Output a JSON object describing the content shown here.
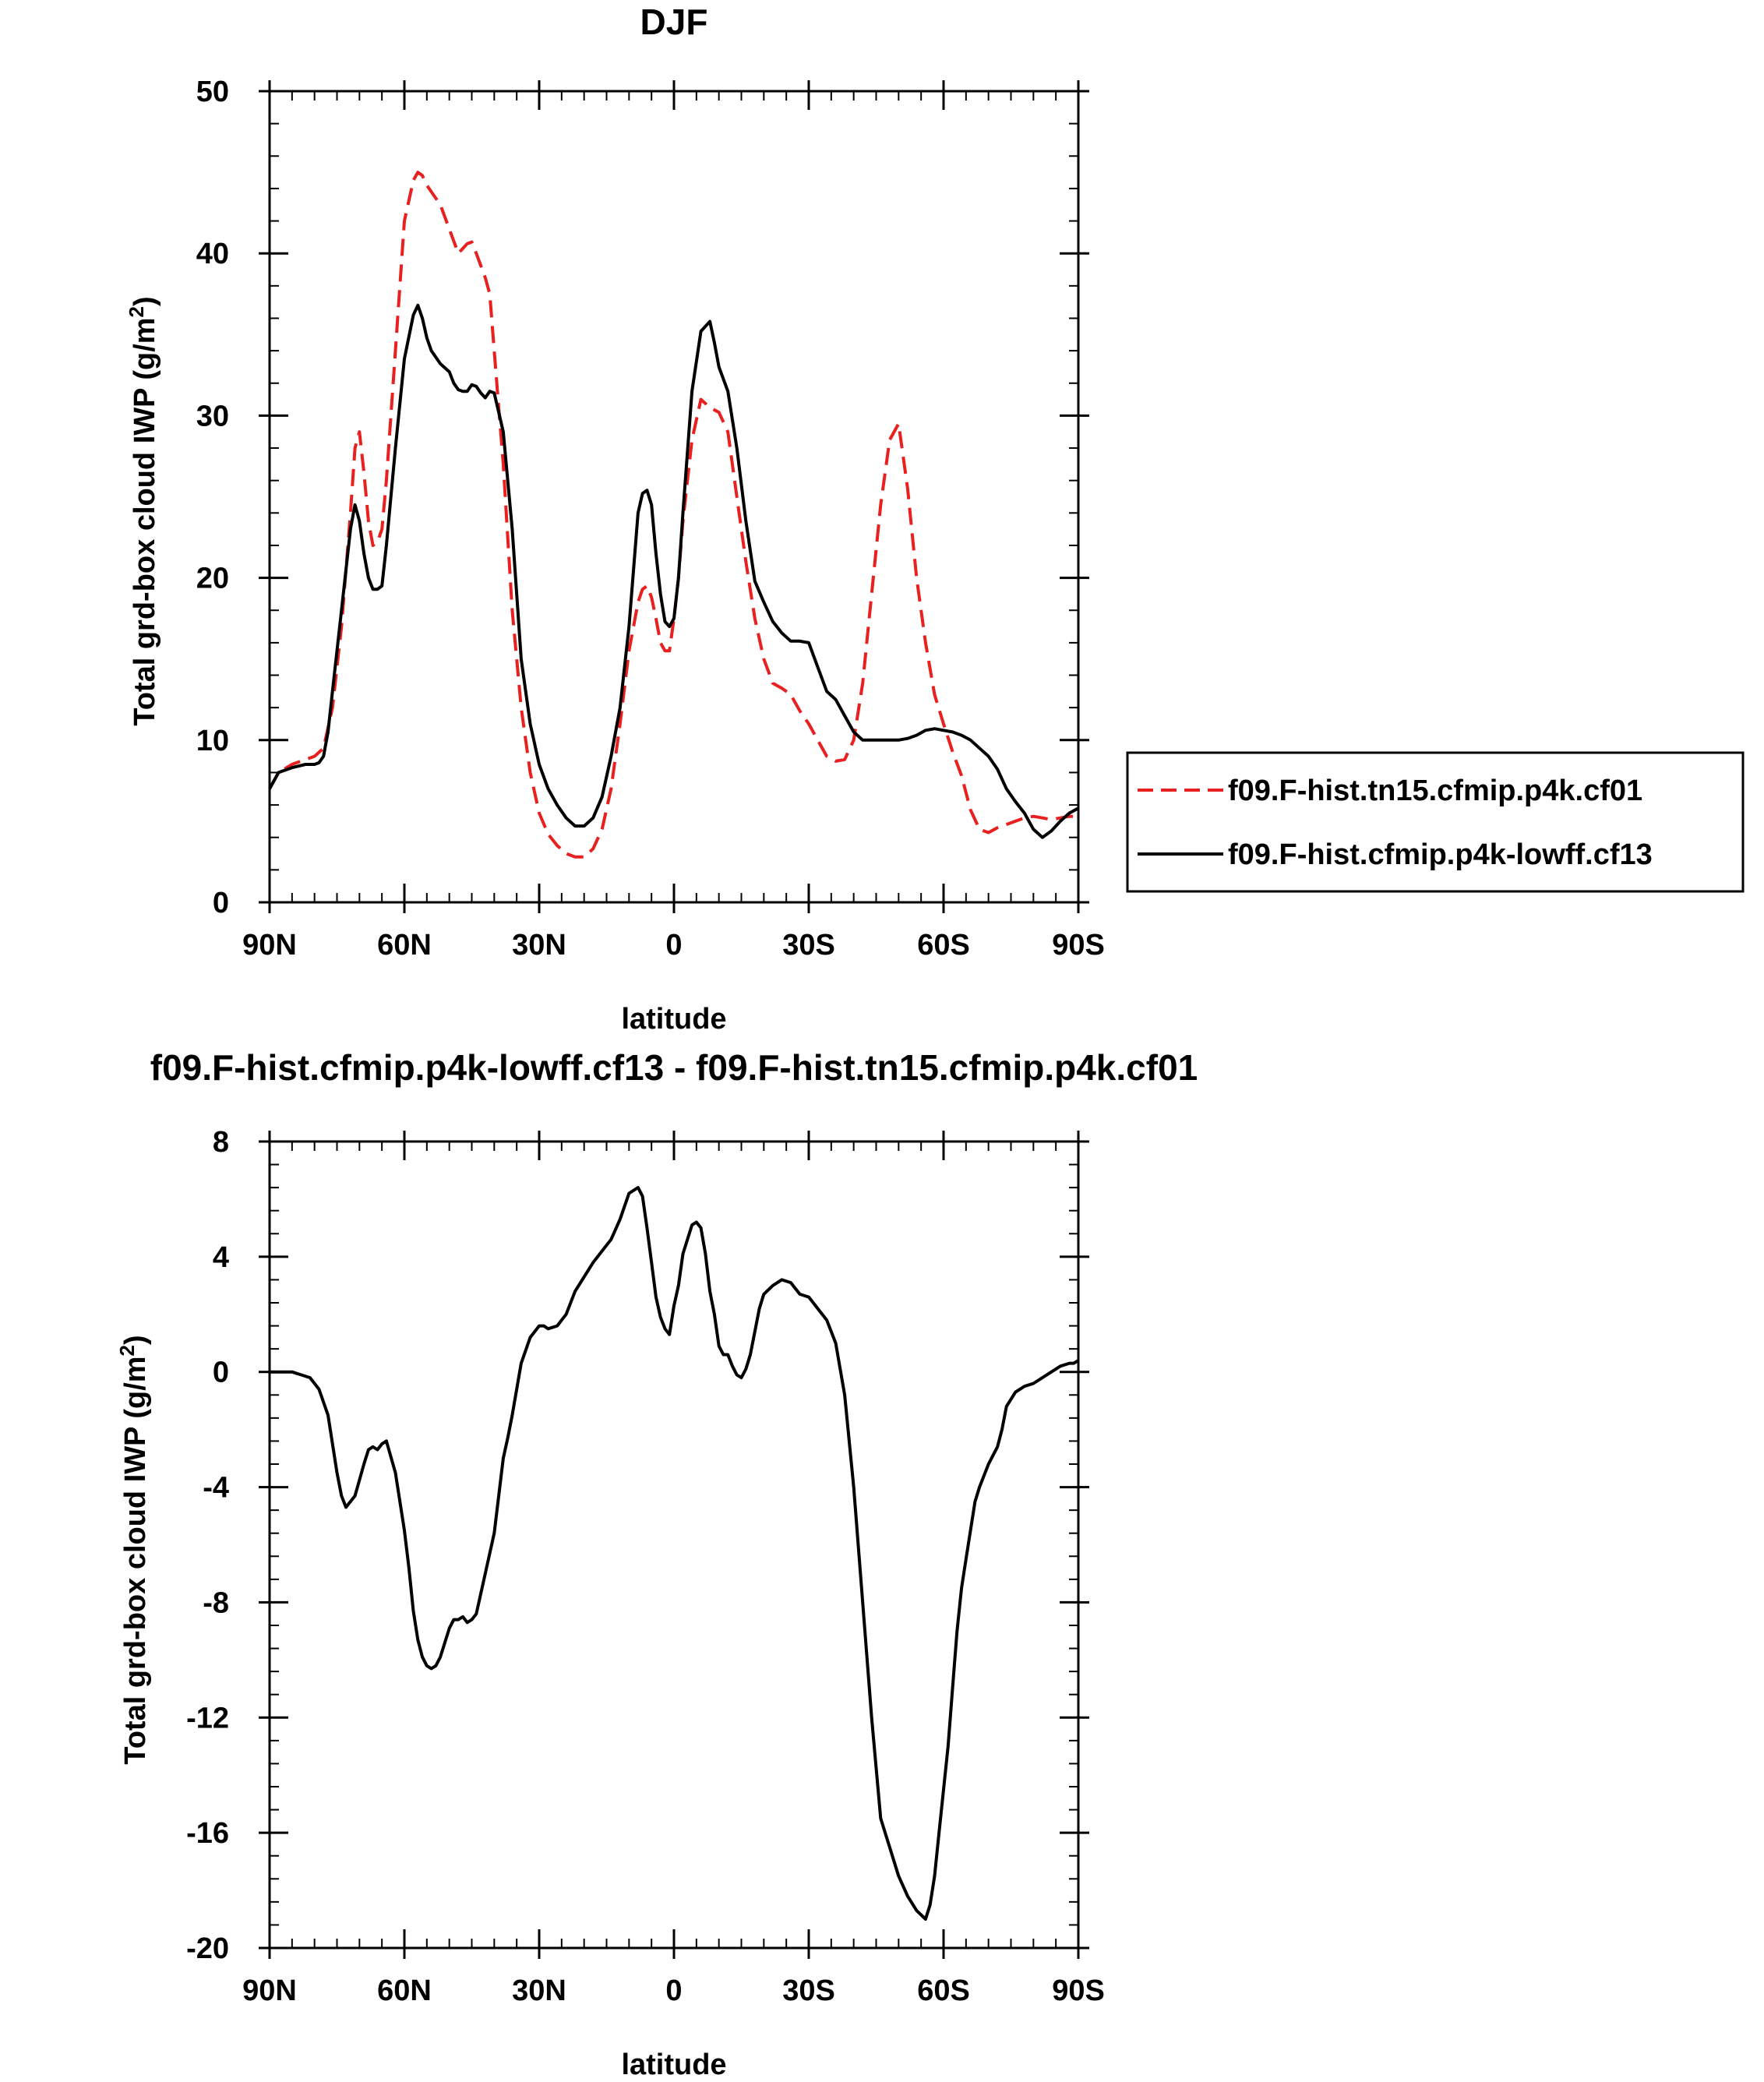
{
  "chart_data": [
    {
      "type": "line",
      "title": "DJF",
      "xlabel": "latitude",
      "ylabel": "Total grd-box cloud IWP (g/m²)",
      "ylabel_base": "Total grd-box cloud IWP (g/m",
      "ylabel_sup": "2",
      "ylabel_close": ")",
      "xlim": [
        90,
        -90
      ],
      "ylim": [
        0,
        50
      ],
      "xticks": [
        90,
        60,
        30,
        0,
        -30,
        -60,
        -90
      ],
      "xtick_labels": [
        "90N",
        "60N",
        "30N",
        "0",
        "30S",
        "60S",
        "90S"
      ],
      "yticks": [
        0,
        10,
        20,
        30,
        40,
        50
      ],
      "ytick_labels": [
        "0",
        "10",
        "20",
        "30",
        "40",
        "50"
      ],
      "legend_placement": "outside right",
      "series": [
        {
          "name": "f09.F-hist.tn15.cfmip.p4k.cf01",
          "color": "#e8201f",
          "dash": "dashed",
          "x": [
            90,
            88,
            85,
            82,
            80,
            78,
            76,
            74,
            72,
            71,
            70,
            69,
            68,
            67,
            66,
            65,
            64,
            62,
            60,
            58,
            57,
            56,
            55,
            54,
            52,
            50,
            48,
            46,
            45,
            44,
            42,
            41,
            40,
            38,
            36,
            34,
            32,
            30,
            28,
            26,
            24,
            22,
            20,
            18,
            16,
            14,
            12,
            10,
            8,
            7,
            6,
            5,
            4,
            3,
            2,
            1,
            0,
            -1,
            -2,
            -4,
            -6,
            -8,
            -10,
            -12,
            -14,
            -16,
            -18,
            -20,
            -22,
            -24,
            -26,
            -28,
            -30,
            -32,
            -34,
            -36,
            -38,
            -40,
            -42,
            -44,
            -46,
            -48,
            -50,
            -52,
            -54,
            -56,
            -58,
            -60,
            -62,
            -64,
            -66,
            -68,
            -70,
            -72,
            -74,
            -76,
            -78,
            -80,
            -82,
            -84,
            -86,
            -88,
            -90
          ],
          "y": [
            7.0,
            8.0,
            8.5,
            8.8,
            9.0,
            9.5,
            12.0,
            17.0,
            24.0,
            28.0,
            29.0,
            26.5,
            23.5,
            22.0,
            22.2,
            23.0,
            26.0,
            34.0,
            42.0,
            44.5,
            45.0,
            44.8,
            44.2,
            43.8,
            43.0,
            41.5,
            40.0,
            40.6,
            40.7,
            40.0,
            38.5,
            37.5,
            34.0,
            27.0,
            18.0,
            12.0,
            8.0,
            5.5,
            4.2,
            3.5,
            3.0,
            2.8,
            2.8,
            3.3,
            4.5,
            7.0,
            11.0,
            15.5,
            18.5,
            19.3,
            19.5,
            18.8,
            17.5,
            16.0,
            15.5,
            15.5,
            17.5,
            20.0,
            23.5,
            28.5,
            31.0,
            30.5,
            30.2,
            29.0,
            25.0,
            21.0,
            17.5,
            15.0,
            13.5,
            13.2,
            12.8,
            11.8,
            11.0,
            10.0,
            9.0,
            8.7,
            8.8,
            10.0,
            13.5,
            19.0,
            24.5,
            28.5,
            29.5,
            25.5,
            20.0,
            16.0,
            12.8,
            11.0,
            9.3,
            7.8,
            5.7,
            4.5,
            4.3,
            4.6,
            4.8,
            5.0,
            5.2,
            5.3,
            5.2,
            5.1,
            5.2,
            5.3,
            5.3
          ]
        },
        {
          "name": "f09.F-hist.cfmip.p4k-lowff.cf13",
          "color": "#000000",
          "dash": "solid",
          "x": [
            90,
            88,
            85,
            82,
            80,
            79,
            78,
            77,
            76,
            74,
            72,
            71,
            70,
            69,
            68,
            67,
            66,
            65,
            64,
            62,
            60,
            58,
            57,
            56,
            55,
            54,
            52,
            50,
            49,
            48,
            47,
            46,
            45,
            44,
            43,
            42,
            41,
            40,
            38,
            36,
            34,
            32,
            30,
            28,
            26,
            24,
            22,
            20,
            18,
            16,
            14,
            12,
            10,
            8,
            7,
            6,
            5,
            4,
            3,
            2,
            1,
            0,
            -1,
            -2,
            -4,
            -6,
            -8,
            -9,
            -10,
            -12,
            -14,
            -16,
            -18,
            -20,
            -22,
            -24,
            -26,
            -28,
            -30,
            -32,
            -34,
            -36,
            -38,
            -40,
            -42,
            -44,
            -46,
            -48,
            -50,
            -52,
            -54,
            -56,
            -58,
            -60,
            -62,
            -64,
            -66,
            -68,
            -70,
            -72,
            -74,
            -76,
            -78,
            -80,
            -82,
            -84,
            -86,
            -88,
            -90
          ],
          "y": [
            7.0,
            8.0,
            8.3,
            8.5,
            8.5,
            8.6,
            9.0,
            10.5,
            13.0,
            18.0,
            23.0,
            24.5,
            23.5,
            21.5,
            20.0,
            19.3,
            19.3,
            19.5,
            22.0,
            28.0,
            33.5,
            36.2,
            36.8,
            36.0,
            34.8,
            34.0,
            33.2,
            32.7,
            32.0,
            31.6,
            31.5,
            31.5,
            31.9,
            31.8,
            31.4,
            31.1,
            31.5,
            31.4,
            29.0,
            23.0,
            15.0,
            11.0,
            8.5,
            7.0,
            6.0,
            5.2,
            4.7,
            4.7,
            5.2,
            6.5,
            9.0,
            12.0,
            17.0,
            24.0,
            25.2,
            25.4,
            24.5,
            21.5,
            19.0,
            17.3,
            17.0,
            17.5,
            20.0,
            24.0,
            31.5,
            35.2,
            35.8,
            34.5,
            33.0,
            31.5,
            28.0,
            23.5,
            19.8,
            18.5,
            17.3,
            16.6,
            16.1,
            16.1,
            16.0,
            14.5,
            13.0,
            12.5,
            11.5,
            10.5,
            10.0,
            10.0,
            10.0,
            10.0,
            10.0,
            10.1,
            10.3,
            10.6,
            10.7,
            10.6,
            10.5,
            10.3,
            10.0,
            9.5,
            9.0,
            8.2,
            7.0,
            6.2,
            5.5,
            4.5,
            4.0,
            4.4,
            5.0,
            5.5,
            5.8
          ]
        }
      ]
    },
    {
      "type": "line",
      "title": "f09.F-hist.cfmip.p4k-lowff.cf13 - f09.F-hist.tn15.cfmip.p4k.cf01",
      "xlabel": "latitude",
      "ylabel": "Total grd-box cloud IWP (g/m²)",
      "ylabel_base": "Total grd-box cloud IWP (g/m",
      "ylabel_sup": "2",
      "ylabel_close": ")",
      "xlim": [
        90,
        -90
      ],
      "ylim": [
        -20,
        8
      ],
      "xticks": [
        90,
        60,
        30,
        0,
        -30,
        -60,
        -90
      ],
      "xtick_labels": [
        "90N",
        "60N",
        "30N",
        "0",
        "30S",
        "60S",
        "90S"
      ],
      "yticks": [
        -20,
        -16,
        -12,
        -8,
        -4,
        0,
        4,
        8
      ],
      "ytick_labels": [
        "-20",
        "-16",
        "-12",
        "-8",
        "-4",
        "0",
        "4",
        "8"
      ],
      "series": [
        {
          "color": "#000000",
          "dash": "solid",
          "x": [
            90,
            87,
            85,
            83,
            81,
            79,
            77,
            75,
            74,
            73,
            71,
            69,
            68,
            67,
            66,
            65,
            64,
            62,
            60,
            59,
            58,
            57,
            56,
            55,
            54,
            53,
            52,
            51,
            50,
            49,
            48,
            47,
            46,
            45,
            44,
            42,
            40,
            38,
            37,
            36,
            34,
            32,
            30,
            29,
            28,
            26,
            24,
            22,
            20,
            18,
            16,
            14,
            12,
            10,
            8,
            7,
            6,
            5,
            4,
            3,
            2,
            1,
            0,
            -1,
            -2,
            -3,
            -4,
            -5,
            -6,
            -7,
            -8,
            -9,
            -10,
            -11,
            -12,
            -13,
            -14,
            -15,
            -16,
            -17,
            -18,
            -19,
            -20,
            -22,
            -24,
            -26,
            -28,
            -30,
            -31,
            -32,
            -34,
            -36,
            -38,
            -40,
            -42,
            -44,
            -46,
            -48,
            -50,
            -52,
            -54,
            -56,
            -57,
            -58,
            -59,
            -60,
            -61,
            -62,
            -63,
            -64,
            -65,
            -66,
            -67,
            -68,
            -69,
            -70,
            -71,
            -72,
            -73,
            -74,
            -76,
            -78,
            -80,
            -82,
            -84,
            -86,
            -88,
            -89,
            -90
          ],
          "y": [
            0.0,
            0.0,
            0.0,
            -0.1,
            -0.2,
            -0.6,
            -1.5,
            -3.5,
            -4.3,
            -4.7,
            -4.3,
            -3.2,
            -2.7,
            -2.6,
            -2.7,
            -2.5,
            -2.4,
            -3.5,
            -5.5,
            -6.8,
            -8.3,
            -9.3,
            -9.9,
            -10.2,
            -10.3,
            -10.2,
            -9.9,
            -9.4,
            -8.9,
            -8.6,
            -8.6,
            -8.5,
            -8.7,
            -8.6,
            -8.4,
            -7.0,
            -5.6,
            -3.0,
            -2.3,
            -1.5,
            0.3,
            1.2,
            1.6,
            1.6,
            1.5,
            1.6,
            2.0,
            2.8,
            3.3,
            3.8,
            4.2,
            4.6,
            5.3,
            6.2,
            6.4,
            6.1,
            5.0,
            3.8,
            2.6,
            1.9,
            1.5,
            1.3,
            2.3,
            3.0,
            4.1,
            4.6,
            5.1,
            5.2,
            5.0,
            4.1,
            2.8,
            2.0,
            0.9,
            0.6,
            0.6,
            0.2,
            -0.1,
            -0.2,
            0.1,
            0.6,
            1.4,
            2.2,
            2.7,
            3.0,
            3.2,
            3.1,
            2.7,
            2.6,
            2.4,
            2.2,
            1.8,
            1.0,
            -0.8,
            -4.0,
            -8.0,
            -12.0,
            -15.5,
            -16.5,
            -17.5,
            -18.2,
            -18.7,
            -19.0,
            -18.5,
            -17.5,
            -16.0,
            -14.5,
            -13.0,
            -11.0,
            -9.0,
            -7.5,
            -6.5,
            -5.5,
            -4.5,
            -4.0,
            -3.6,
            -3.2,
            -2.9,
            -2.6,
            -2.0,
            -1.2,
            -0.7,
            -0.5,
            -0.4,
            -0.2,
            0.0,
            0.2,
            0.3,
            0.3,
            0.4
          ]
        }
      ]
    }
  ]
}
